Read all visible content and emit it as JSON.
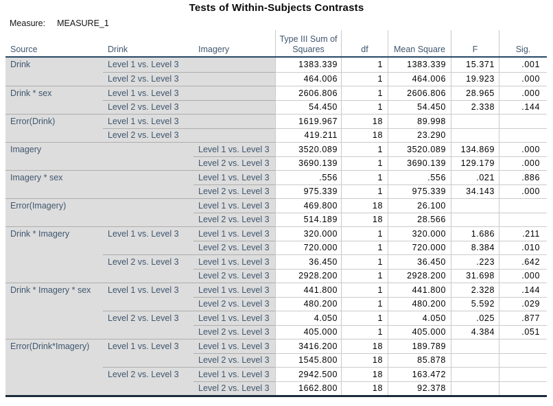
{
  "title": "Tests of Within-Subjects Contrasts",
  "measure": {
    "label": "Measure:",
    "value": "MEASURE_1"
  },
  "colors": {
    "label_text": "#3f566e",
    "label_background": "#dddddd",
    "header_rule": "#274666",
    "bottom_rule": "#1c2b3a",
    "grid_line_light": "#cacaca",
    "grid_line_gray_area": "#adadad",
    "value_text": "#000000"
  },
  "table": {
    "columns": [
      "Source",
      "Drink",
      "Imagery",
      "Type III Sum of Squares",
      "df",
      "Mean Square",
      "F",
      "Sig."
    ],
    "rows": [
      {
        "source": "Drink",
        "drink": "Level 1 vs. Level 3",
        "imagery": "",
        "ss": "1383.339",
        "df": "1",
        "ms": "1383.339",
        "f": "15.371",
        "sig": ".001"
      },
      {
        "source": "",
        "drink": "Level 2 vs. Level 3",
        "imagery": "",
        "ss": "464.006",
        "df": "1",
        "ms": "464.006",
        "f": "19.923",
        "sig": ".000"
      },
      {
        "source": "Drink * sex",
        "drink": "Level 1 vs. Level 3",
        "imagery": "",
        "ss": "2606.806",
        "df": "1",
        "ms": "2606.806",
        "f": "28.965",
        "sig": ".000"
      },
      {
        "source": "",
        "drink": "Level 2 vs. Level 3",
        "imagery": "",
        "ss": "54.450",
        "df": "1",
        "ms": "54.450",
        "f": "2.338",
        "sig": ".144"
      },
      {
        "source": "Error(Drink)",
        "drink": "Level 1 vs. Level 3",
        "imagery": "",
        "ss": "1619.967",
        "df": "18",
        "ms": "89.998",
        "f": "",
        "sig": ""
      },
      {
        "source": "",
        "drink": "Level 2 vs. Level 3",
        "imagery": "",
        "ss": "419.211",
        "df": "18",
        "ms": "23.290",
        "f": "",
        "sig": ""
      },
      {
        "source": "Imagery",
        "drink": "",
        "imagery": "Level 1 vs. Level 3",
        "ss": "3520.089",
        "df": "1",
        "ms": "3520.089",
        "f": "134.869",
        "sig": ".000"
      },
      {
        "source": "",
        "drink": "",
        "imagery": "Level 2 vs. Level 3",
        "ss": "3690.139",
        "df": "1",
        "ms": "3690.139",
        "f": "129.179",
        "sig": ".000"
      },
      {
        "source": "Imagery * sex",
        "drink": "",
        "imagery": "Level 1 vs. Level 3",
        "ss": ".556",
        "df": "1",
        "ms": ".556",
        "f": ".021",
        "sig": ".886"
      },
      {
        "source": "",
        "drink": "",
        "imagery": "Level 2 vs. Level 3",
        "ss": "975.339",
        "df": "1",
        "ms": "975.339",
        "f": "34.143",
        "sig": ".000"
      },
      {
        "source": "Error(Imagery)",
        "drink": "",
        "imagery": "Level 1 vs. Level 3",
        "ss": "469.800",
        "df": "18",
        "ms": "26.100",
        "f": "",
        "sig": ""
      },
      {
        "source": "",
        "drink": "",
        "imagery": "Level 2 vs. Level 3",
        "ss": "514.189",
        "df": "18",
        "ms": "28.566",
        "f": "",
        "sig": ""
      },
      {
        "source": "Drink * Imagery",
        "drink": "Level 1 vs. Level 3",
        "imagery": "Level 1 vs. Level 3",
        "ss": "320.000",
        "df": "1",
        "ms": "320.000",
        "f": "1.686",
        "sig": ".211"
      },
      {
        "source": "",
        "drink": "",
        "imagery": "Level 2 vs. Level 3",
        "ss": "720.000",
        "df": "1",
        "ms": "720.000",
        "f": "8.384",
        "sig": ".010"
      },
      {
        "source": "",
        "drink": "Level 2 vs. Level 3",
        "imagery": "Level 1 vs. Level 3",
        "ss": "36.450",
        "df": "1",
        "ms": "36.450",
        "f": ".223",
        "sig": ".642"
      },
      {
        "source": "",
        "drink": "",
        "imagery": "Level 2 vs. Level 3",
        "ss": "2928.200",
        "df": "1",
        "ms": "2928.200",
        "f": "31.698",
        "sig": ".000"
      },
      {
        "source": "Drink * Imagery * sex",
        "drink": "Level 1 vs. Level 3",
        "imagery": "Level 1 vs. Level 3",
        "ss": "441.800",
        "df": "1",
        "ms": "441.800",
        "f": "2.328",
        "sig": ".144"
      },
      {
        "source": "",
        "drink": "",
        "imagery": "Level 2 vs. Level 3",
        "ss": "480.200",
        "df": "1",
        "ms": "480.200",
        "f": "5.592",
        "sig": ".029"
      },
      {
        "source": "",
        "drink": "Level 2 vs. Level 3",
        "imagery": "Level 1 vs. Level 3",
        "ss": "4.050",
        "df": "1",
        "ms": "4.050",
        "f": ".025",
        "sig": ".877"
      },
      {
        "source": "",
        "drink": "",
        "imagery": "Level 2 vs. Level 3",
        "ss": "405.000",
        "df": "1",
        "ms": "405.000",
        "f": "4.384",
        "sig": ".051"
      },
      {
        "source": "Error(Drink*Imagery)",
        "drink": "Level 1 vs. Level 3",
        "imagery": "Level 1 vs. Level 3",
        "ss": "3416.200",
        "df": "18",
        "ms": "189.789",
        "f": "",
        "sig": ""
      },
      {
        "source": "",
        "drink": "",
        "imagery": "Level 2 vs. Level 3",
        "ss": "1545.800",
        "df": "18",
        "ms": "85.878",
        "f": "",
        "sig": ""
      },
      {
        "source": "",
        "drink": "Level 2 vs. Level 3",
        "imagery": "Level 1 vs. Level 3",
        "ss": "2942.500",
        "df": "18",
        "ms": "163.472",
        "f": "",
        "sig": ""
      },
      {
        "source": "",
        "drink": "",
        "imagery": "Level 2 vs. Level 3",
        "ss": "1662.800",
        "df": "18",
        "ms": "92.378",
        "f": "",
        "sig": ""
      }
    ]
  }
}
